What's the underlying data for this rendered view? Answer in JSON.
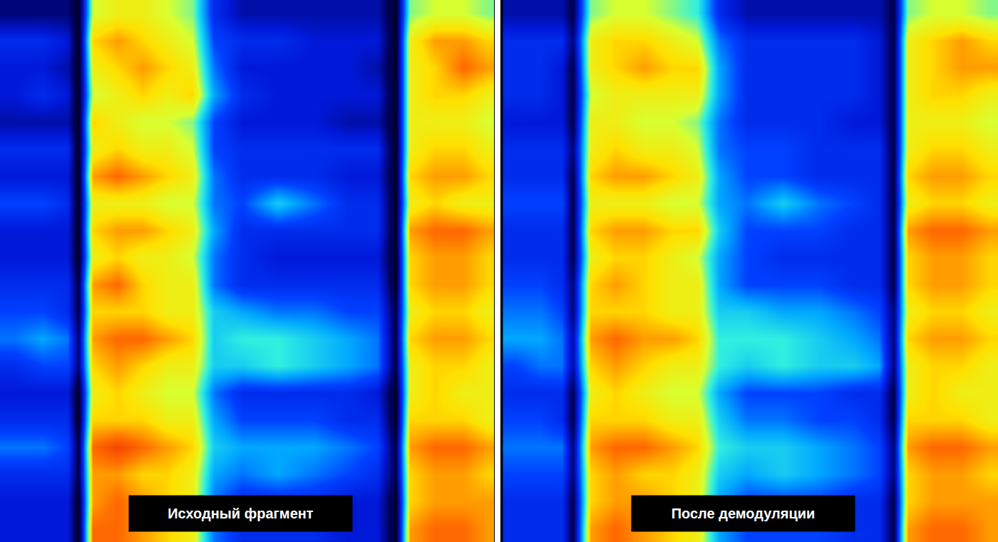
{
  "chart_data": [
    {
      "type": "heatmap",
      "caption": "Исходный фрагмент",
      "tick_labels": false,
      "xlim": [
        0,
        693
      ],
      "ylim": [
        0,
        760
      ],
      "zlim": [
        0,
        10
      ],
      "x": [
        20,
        60,
        95,
        110,
        130,
        165,
        200,
        235,
        270,
        300,
        340,
        390,
        440,
        490,
        530,
        555,
        575,
        610,
        650,
        685
      ],
      "y": [
        19,
        57,
        95,
        133,
        171,
        209,
        247,
        285,
        323,
        361,
        399,
        437,
        475,
        513,
        551,
        589,
        627,
        665,
        703,
        741
      ],
      "z": [
        [
          1.5,
          1.5,
          1.5,
          0.5,
          6.5,
          7,
          7,
          6.5,
          6,
          3,
          2,
          2,
          2,
          2,
          2,
          0.5,
          6,
          6.5,
          6.5,
          6
        ],
        [
          3,
          3,
          2.5,
          0.5,
          7.5,
          8,
          7.5,
          7,
          6.5,
          3.5,
          3,
          3,
          2.5,
          2.5,
          2.5,
          0.5,
          7,
          8,
          8,
          7.5
        ],
        [
          2.5,
          2.5,
          2,
          0.5,
          7,
          7.5,
          8,
          7.5,
          7,
          4,
          2.5,
          2.5,
          2.5,
          2.5,
          2,
          0.5,
          7,
          7.5,
          8.5,
          8
        ],
        [
          2.5,
          3,
          2.5,
          0.5,
          6.5,
          7,
          7.5,
          7,
          7.5,
          4.5,
          3,
          2.5,
          2.5,
          2.5,
          2.5,
          0.5,
          7,
          7.5,
          7.5,
          7
        ],
        [
          2,
          2,
          2,
          0.5,
          7.5,
          7,
          6.5,
          6.5,
          6,
          3.5,
          2.5,
          2.5,
          2.5,
          2,
          2,
          0.5,
          7,
          7,
          7,
          6.5
        ],
        [
          3,
          3,
          3,
          0.5,
          7,
          7.5,
          7,
          7,
          6.5,
          3.5,
          3,
          3,
          3,
          3,
          3,
          0.5,
          7,
          7.5,
          7.5,
          7
        ],
        [
          2.5,
          2.5,
          2.5,
          0.5,
          8,
          8.5,
          8,
          7.5,
          7,
          4,
          3,
          3,
          3,
          2.5,
          2.5,
          0.5,
          7.5,
          8,
          8,
          7.5
        ],
        [
          3.5,
          3.5,
          3,
          0.5,
          7,
          7,
          7,
          6.5,
          6.5,
          4,
          3.5,
          5,
          4,
          3,
          3,
          0.5,
          7,
          7.5,
          7,
          7
        ],
        [
          2.5,
          2.5,
          2.5,
          0.5,
          7.5,
          8,
          8,
          7.5,
          7,
          4.5,
          3,
          3,
          3,
          3,
          3,
          0.5,
          8,
          8.5,
          8.5,
          8
        ],
        [
          2.5,
          2.5,
          2.5,
          0.5,
          7,
          7.5,
          7,
          7,
          6.5,
          4,
          3,
          2.5,
          2.5,
          2.5,
          2.5,
          0.5,
          7.5,
          8,
          8,
          7.5
        ],
        [
          3,
          3,
          3,
          1,
          8,
          8.5,
          7.5,
          7,
          7,
          4,
          3,
          3,
          3,
          3,
          3,
          0.5,
          7.5,
          8,
          8,
          7.5
        ],
        [
          3.5,
          3.5,
          3,
          1,
          7.5,
          7.5,
          7.5,
          7,
          7,
          5,
          4.5,
          4,
          4,
          3.5,
          3.5,
          1,
          7,
          7.5,
          7.5,
          7
        ],
        [
          4,
          4.5,
          4,
          1.5,
          8,
          8.5,
          8.5,
          8,
          7.5,
          5,
          5.5,
          5.5,
          5,
          4.5,
          4,
          1,
          7.5,
          8,
          8,
          7.5
        ],
        [
          3,
          3.5,
          3.5,
          1.5,
          7.5,
          8,
          7.5,
          7,
          7,
          5,
          5,
          5.5,
          5,
          4.5,
          4,
          1,
          7,
          7.5,
          7.5,
          7
        ],
        [
          2.5,
          2.5,
          2.5,
          0.5,
          7,
          7.5,
          7,
          6.5,
          6.5,
          4,
          3,
          3,
          3,
          3,
          2.5,
          0.5,
          7,
          7.5,
          7,
          7
        ],
        [
          3,
          3,
          3,
          0.5,
          7.5,
          7.5,
          7.5,
          7,
          7,
          4.5,
          3.5,
          3.5,
          3.5,
          3,
          3,
          0.5,
          7.5,
          7.5,
          7.5,
          7
        ],
        [
          4,
          4,
          3.5,
          1,
          8.5,
          9,
          8.5,
          8,
          7.5,
          5,
          4.5,
          4.5,
          4.5,
          4,
          3.5,
          1,
          8,
          8.5,
          8.5,
          8
        ],
        [
          3,
          3,
          3,
          1,
          8,
          8,
          7.5,
          7.5,
          7,
          4.5,
          4,
          4.5,
          4,
          3.5,
          3,
          1,
          7.5,
          8,
          8,
          7.5
        ],
        [
          2.5,
          2.5,
          2.5,
          0.5,
          8,
          8.5,
          8,
          7.5,
          7,
          4,
          3,
          3,
          3,
          2.5,
          2.5,
          0.5,
          7.5,
          8,
          8,
          8
        ],
        [
          2.5,
          2.5,
          2.5,
          0.5,
          8.5,
          8.5,
          8,
          7.5,
          7,
          4,
          3,
          3,
          3,
          2.5,
          2.5,
          0.5,
          8,
          8.5,
          8.5,
          8
        ]
      ]
    },
    {
      "type": "heatmap",
      "caption": "После демодуляции",
      "tick_labels": false,
      "xlim": [
        0,
        697
      ],
      "ylim": [
        0,
        760
      ],
      "zlim": [
        0,
        10
      ],
      "x": [
        20,
        55,
        85,
        100,
        125,
        160,
        200,
        240,
        275,
        305,
        345,
        395,
        445,
        495,
        530,
        550,
        570,
        605,
        645,
        685
      ],
      "y": [
        19,
        57,
        95,
        133,
        171,
        209,
        247,
        285,
        323,
        361,
        399,
        437,
        475,
        513,
        551,
        589,
        627,
        665,
        703,
        741
      ],
      "z": [
        [
          2,
          2,
          2,
          1,
          6,
          6.5,
          6.5,
          6,
          5.5,
          3,
          2,
          2,
          2,
          2,
          2,
          1,
          6,
          6.5,
          6.5,
          6
        ],
        [
          3,
          3,
          3,
          1.5,
          7,
          7.5,
          7.5,
          7,
          6.5,
          4,
          3,
          3,
          3,
          3,
          2.5,
          1,
          7,
          7.5,
          8,
          7.5
        ],
        [
          3,
          3,
          2.5,
          1,
          7,
          7.5,
          8,
          7.5,
          7.5,
          4.5,
          3,
          3,
          3,
          3,
          2.5,
          1,
          7,
          7.5,
          8,
          8
        ],
        [
          3,
          3,
          2.5,
          1,
          6.5,
          7,
          7,
          7,
          7,
          4.5,
          3,
          3,
          3,
          3,
          2.5,
          1,
          7,
          7.5,
          7.5,
          7
        ],
        [
          2.5,
          2.5,
          2.5,
          1,
          7,
          7,
          6.5,
          6.5,
          6,
          4,
          3,
          3,
          3,
          2.5,
          2.5,
          1,
          7,
          7,
          7,
          6.5
        ],
        [
          3,
          3,
          3,
          1.5,
          7,
          7.5,
          7,
          7,
          6.5,
          4,
          3.5,
          3.5,
          3,
          3,
          3,
          1,
          7,
          7.5,
          7.5,
          7
        ],
        [
          3,
          3,
          3,
          1,
          7.5,
          8,
          8,
          7.5,
          7,
          4.5,
          3.5,
          3.5,
          3,
          3,
          3,
          1,
          7.5,
          8,
          8,
          7.5
        ],
        [
          3.5,
          3.5,
          3.5,
          1,
          7,
          7,
          7,
          6.5,
          6.5,
          4.5,
          4,
          5,
          4,
          3.5,
          3,
          1,
          7,
          7.5,
          7.5,
          7
        ],
        [
          3,
          3,
          3,
          1,
          7.5,
          8,
          8,
          7.5,
          7.5,
          5,
          3.5,
          3.5,
          3.5,
          3,
          3,
          1,
          8,
          8.5,
          8.5,
          8
        ],
        [
          3,
          3,
          3,
          1,
          7,
          7.5,
          7.5,
          7,
          6.5,
          4.5,
          3.5,
          3,
          3,
          3,
          3,
          1,
          7.5,
          8,
          8,
          7.5
        ],
        [
          3.5,
          3.5,
          3,
          1.5,
          7.5,
          8,
          7.5,
          7,
          7,
          4.5,
          3.5,
          3.5,
          3.5,
          3,
          3,
          1,
          7.5,
          8,
          8,
          7.5
        ],
        [
          4,
          4,
          3.5,
          1.5,
          7.5,
          7.5,
          7.5,
          7,
          7,
          5,
          5,
          4.5,
          4.5,
          4,
          3.5,
          1.5,
          7,
          7.5,
          7.5,
          7
        ],
        [
          4.5,
          4.5,
          4,
          2,
          8,
          8.5,
          8,
          8,
          7.5,
          5.5,
          5.5,
          5.5,
          5,
          4.5,
          4,
          1.5,
          7.5,
          8,
          8,
          7.5
        ],
        [
          3.5,
          4,
          4,
          2,
          7.5,
          8,
          7.5,
          7,
          7,
          5.5,
          5,
          5.5,
          5,
          5,
          4.5,
          1.5,
          7,
          7.5,
          7.5,
          7
        ],
        [
          3,
          3,
          3,
          1,
          7,
          7.5,
          7,
          6.5,
          6.5,
          4.5,
          3.5,
          3.5,
          3.5,
          3,
          3,
          1,
          7,
          7.5,
          7,
          7
        ],
        [
          3.5,
          3.5,
          3,
          1,
          7.5,
          7.5,
          7.5,
          7,
          7,
          5,
          4,
          4,
          3.5,
          3.5,
          3,
          1,
          7.5,
          7.5,
          7.5,
          7
        ],
        [
          4,
          4,
          4,
          1.5,
          8,
          8.5,
          8.5,
          8,
          7.5,
          5.5,
          5,
          5,
          4.5,
          4,
          3.5,
          1.5,
          8,
          8.5,
          8.5,
          8
        ],
        [
          3.5,
          3.5,
          3.5,
          1.5,
          7.5,
          8,
          7.5,
          7.5,
          7,
          5,
          4.5,
          5,
          4.5,
          4,
          3.5,
          1.5,
          7.5,
          8,
          8,
          7.5
        ],
        [
          3,
          3,
          3,
          1,
          7.5,
          8,
          8,
          7.5,
          7,
          4.5,
          3.5,
          3.5,
          3.5,
          3,
          3,
          1,
          7.5,
          8,
          8,
          8
        ],
        [
          3,
          3,
          3,
          1,
          8,
          8.5,
          8,
          7.5,
          7,
          4.5,
          3.5,
          3.5,
          3.5,
          3,
          3,
          1,
          8,
          8.5,
          8.5,
          8
        ]
      ]
    }
  ]
}
